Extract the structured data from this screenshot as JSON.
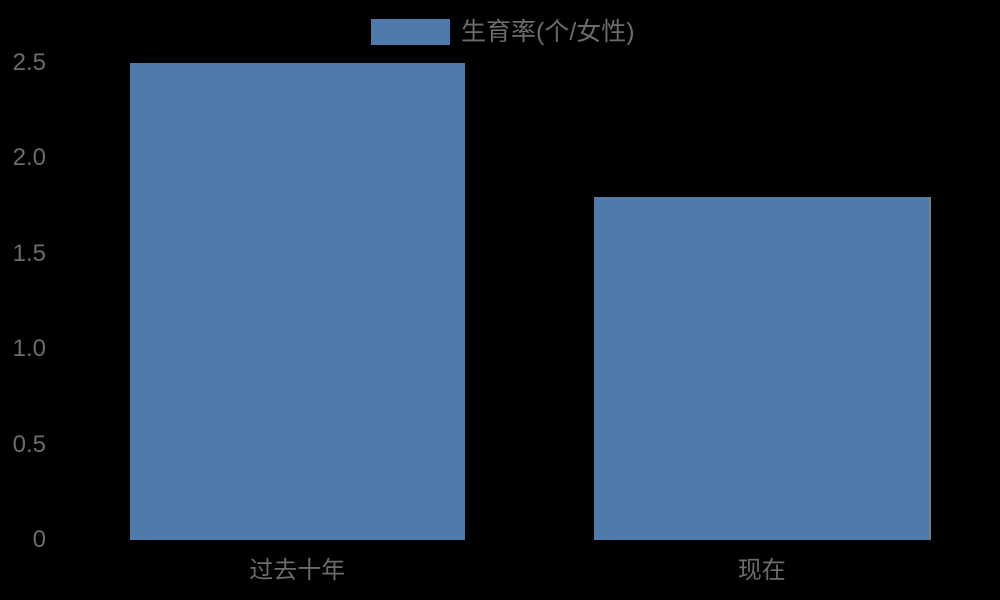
{
  "chart_data": {
    "type": "bar",
    "title": "",
    "categories": [
      "过去十年",
      "现在"
    ],
    "values": [
      2.5,
      1.8
    ],
    "series_name": "生育率(个/女性)",
    "legend_entries": [
      "生育率(个/女性)"
    ],
    "legend_position": "top-center",
    "xlabel": "",
    "ylabel": "",
    "ylim": [
      0,
      2.5
    ],
    "ytick_labels": [
      "0",
      "0.5",
      "1.0",
      "1.5",
      "2.0",
      "2.5"
    ],
    "ytick_values": [
      0,
      0.5,
      1.0,
      1.5,
      2.0,
      2.5
    ],
    "grid": "off",
    "axis_lines": "off",
    "colors": {
      "background": "#000000",
      "bar": "#4e7bac",
      "text": "#6b6b6b"
    }
  }
}
